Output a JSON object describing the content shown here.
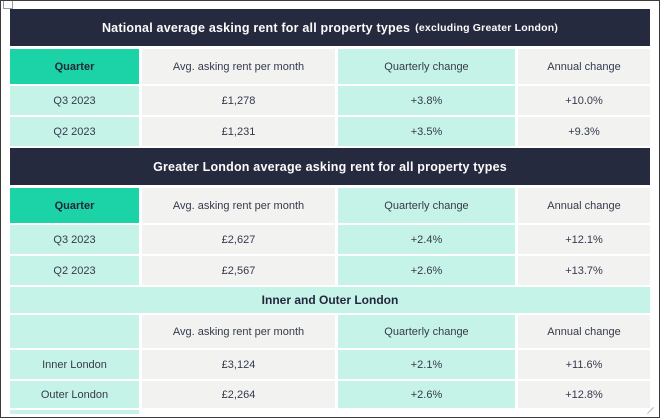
{
  "colors": {
    "accent_teal": "#1bd3a6",
    "mint": "#c6f3e8",
    "dark_navy": "#262a3e",
    "light_gray": "#f2f2f1",
    "text_dark": "#353a4c",
    "banner_text": "#fbfbfb"
  },
  "sections": [
    {
      "banner": "National average asking rent for all property types",
      "banner_note": "(excluding Greater London)",
      "headers": {
        "c1": "Quarter",
        "c2": "Avg. asking rent per month",
        "c3": "Quarterly change",
        "c4": "Annual change"
      },
      "rows": [
        {
          "c1": "Q3 2023",
          "c2": "£1,278",
          "c3": "+3.8%",
          "c4": "+10.0%"
        },
        {
          "c1": "Q2 2023",
          "c2": "£1,231",
          "c3": "+3.5%",
          "c4": "+9.3%"
        }
      ]
    },
    {
      "banner": "Greater London average asking rent for all property types",
      "banner_note": "",
      "headers": {
        "c1": "Quarter",
        "c2": "Avg. asking rent per month",
        "c3": "Quarterly change",
        "c4": "Annual change"
      },
      "rows": [
        {
          "c1": "Q3 2023",
          "c2": "£2,627",
          "c3": "+2.4%",
          "c4": "+12.1%"
        },
        {
          "c1": "Q2 2023",
          "c2": "£2,567",
          "c3": "+2.6%",
          "c4": "+13.7%"
        }
      ]
    },
    {
      "banner": "Inner and Outer London",
      "headers": {
        "c1": "",
        "c2": "Avg. asking rent per month",
        "c3": "Quarterly change",
        "c4": "Annual change"
      },
      "rows": [
        {
          "c1": "Inner London",
          "c2": "£3,124",
          "c3": "+2.1%",
          "c4": "+11.6%"
        },
        {
          "c1": "Outer London",
          "c2": "£2,264",
          "c3": "+2.6%",
          "c4": "+12.8%"
        }
      ]
    }
  ],
  "chart_data": [
    {
      "type": "table",
      "title": "National average asking rent for all property types (excluding Greater London)",
      "columns": [
        "Quarter",
        "Avg. asking rent per month",
        "Quarterly change",
        "Annual change"
      ],
      "rows": [
        [
          "Q3 2023",
          "£1,278",
          "+3.8%",
          "+10.0%"
        ],
        [
          "Q2 2023",
          "£1,231",
          "+3.5%",
          "+9.3%"
        ]
      ]
    },
    {
      "type": "table",
      "title": "Greater London average asking rent for all property types",
      "columns": [
        "Quarter",
        "Avg. asking rent per month",
        "Quarterly change",
        "Annual change"
      ],
      "rows": [
        [
          "Q3 2023",
          "£2,627",
          "+2.4%",
          "+12.1%"
        ],
        [
          "Q2 2023",
          "£2,567",
          "+2.6%",
          "+13.7%"
        ]
      ]
    },
    {
      "type": "table",
      "title": "Inner and Outer London",
      "columns": [
        "",
        "Avg. asking rent per month",
        "Quarterly change",
        "Annual change"
      ],
      "rows": [
        [
          "Inner London",
          "£3,124",
          "+2.1%",
          "+11.6%"
        ],
        [
          "Outer London",
          "£2,264",
          "+2.6%",
          "+12.8%"
        ]
      ]
    }
  ]
}
